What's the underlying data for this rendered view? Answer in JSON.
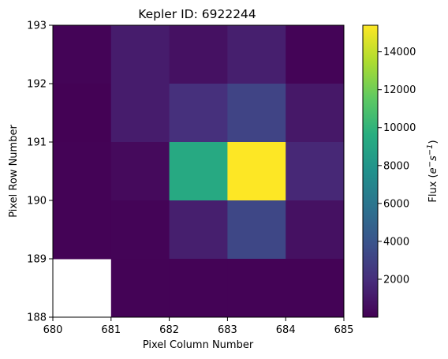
{
  "chart_data": {
    "type": "heatmap",
    "title": "Kepler ID: 6922244",
    "xlabel": "Pixel Column Number",
    "ylabel": "Pixel Row Number",
    "xlim": [
      680,
      685
    ],
    "ylim": [
      188,
      193
    ],
    "x_ticks": [
      "680",
      "681",
      "682",
      "683",
      "684",
      "685"
    ],
    "y_ticks": [
      "188",
      "189",
      "190",
      "191",
      "192",
      "193"
    ],
    "colormap": "viridis",
    "colorbar": {
      "label": "Flux (e⁻s⁻¹)",
      "label_main": "Flux (",
      "label_e": "e",
      "label_minus": "−",
      "label_s": "s",
      "label_exp": "−1",
      "label_close": ")",
      "min": 0,
      "max": 15400,
      "ticks": [
        "2000",
        "4000",
        "6000",
        "8000",
        "10000",
        "12000",
        "14000"
      ]
    },
    "pixels": [
      {
        "col": 680,
        "row": 192,
        "flux": 150
      },
      {
        "col": 681,
        "row": 192,
        "flux": 1200
      },
      {
        "col": 682,
        "row": 192,
        "flux": 700
      },
      {
        "col": 683,
        "row": 192,
        "flux": 1300
      },
      {
        "col": 684,
        "row": 192,
        "flux": 150
      },
      {
        "col": 680,
        "row": 191,
        "flux": 50
      },
      {
        "col": 681,
        "row": 191,
        "flux": 1200
      },
      {
        "col": 682,
        "row": 191,
        "flux": 2100
      },
      {
        "col": 683,
        "row": 191,
        "flux": 3100
      },
      {
        "col": 684,
        "row": 191,
        "flux": 1000
      },
      {
        "col": 680,
        "row": 190,
        "flux": 100
      },
      {
        "col": 681,
        "row": 190,
        "flux": 400
      },
      {
        "col": 682,
        "row": 190,
        "flux": 9300
      },
      {
        "col": 683,
        "row": 190,
        "flux": 15400
      },
      {
        "col": 684,
        "row": 190,
        "flux": 1700
      },
      {
        "col": 680,
        "row": 189,
        "flux": 100
      },
      {
        "col": 681,
        "row": 189,
        "flux": 150
      },
      {
        "col": 682,
        "row": 189,
        "flux": 1300
      },
      {
        "col": 683,
        "row": 189,
        "flux": 3300
      },
      {
        "col": 684,
        "row": 189,
        "flux": 700
      },
      {
        "col": 681,
        "row": 188,
        "flux": 80
      },
      {
        "col": 682,
        "row": 188,
        "flux": 80
      },
      {
        "col": 683,
        "row": 188,
        "flux": 80
      },
      {
        "col": 684,
        "row": 188,
        "flux": 80
      }
    ]
  }
}
